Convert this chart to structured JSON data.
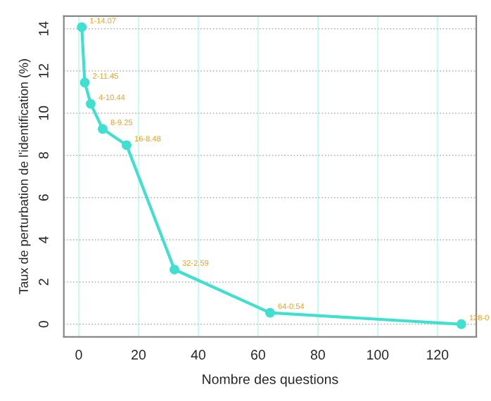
{
  "chart_data": {
    "type": "line",
    "xlabel": "Nombre des questions",
    "ylabel": "Taux de perturbation de l'identification (%)",
    "x": [
      1,
      2,
      4,
      8,
      16,
      32,
      64,
      128
    ],
    "series": [
      {
        "color": "#40e0d0",
        "values": [
          14.07,
          11.45,
          10.44,
          9.25,
          8.48,
          2.59,
          0.54,
          0
        ],
        "value_labels": [
          "1-14.07",
          "2-11.45",
          "4-10.44",
          "8-9.25",
          "16-8.48",
          "32-2.59",
          "64-0.54",
          "128-0"
        ]
      }
    ],
    "marker": "circle",
    "line_style": "solid",
    "xlim": [
      -5,
      133
    ],
    "xticks": [
      0,
      20,
      40,
      60,
      80,
      100,
      120
    ],
    "ylim": [
      -0.6,
      14.6
    ],
    "yticks": [
      0,
      2,
      4,
      6,
      8,
      10,
      12,
      14
    ],
    "grid": true
  }
}
